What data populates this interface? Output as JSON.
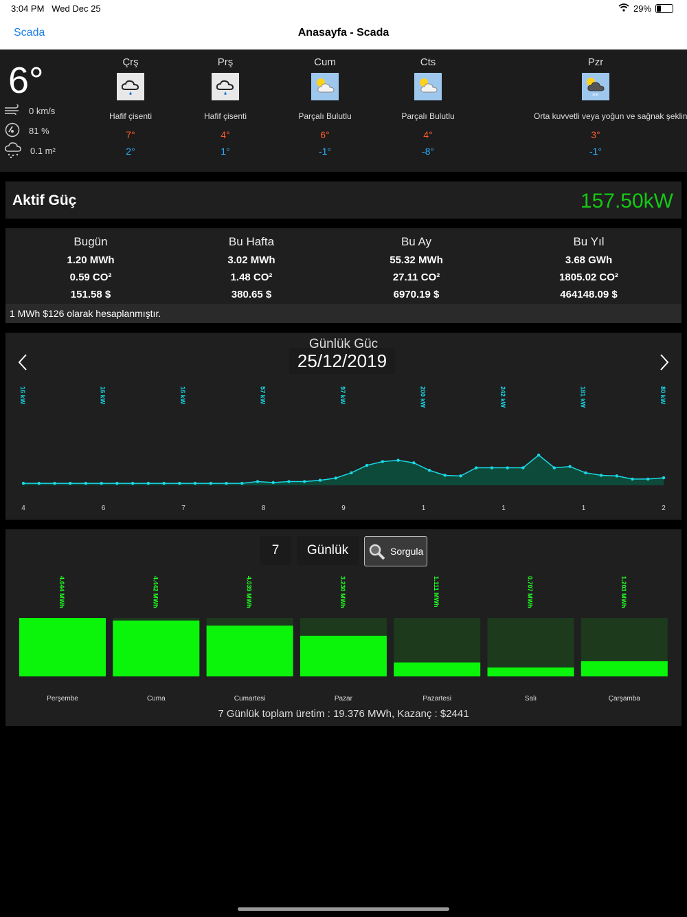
{
  "status": {
    "time": "3:04 PM",
    "date": "Wed Dec 25",
    "battery": "29%",
    "battery_level": 0.29
  },
  "nav": {
    "back": "Scada",
    "title": "Anasayfa - Scada"
  },
  "weather": {
    "current": {
      "temp": "6°",
      "wind": "0 km/s",
      "humidity": "81 %",
      "rain": "0.1 m²"
    },
    "days": [
      {
        "name": "Çrş",
        "icon": "rain-cloud-icon",
        "cond": "Hafif çisenti",
        "hi": "7°",
        "lo": "2°"
      },
      {
        "name": "Prş",
        "icon": "rain-cloud-icon",
        "cond": "Hafif çisenti",
        "hi": "4°",
        "lo": "1°"
      },
      {
        "name": "Cum",
        "icon": "partly-cloudy-icon",
        "cond": "Parçalı Bulutlu",
        "hi": "6°",
        "lo": "-1°"
      },
      {
        "name": "Cts",
        "icon": "partly-cloudy-icon",
        "cond": "Parçalı Bulutlu",
        "hi": "4°",
        "lo": "-8°"
      },
      {
        "name": "Pzr",
        "icon": "snow-cloud-icon",
        "cond": "Orta kuvvetli veya yoğun ve sağnak şeklinde kar",
        "hi": "3°",
        "lo": "-1°"
      }
    ]
  },
  "aktif": {
    "label": "Aktif Güç",
    "value": "157.50kW"
  },
  "stats": {
    "cols": [
      {
        "h": "Bugün",
        "energy": "1.20 MWh",
        "co2": "0.59 CO²",
        "money": "151.58 $"
      },
      {
        "h": "Bu Hafta",
        "energy": "3.02 MWh",
        "co2": "1.48 CO²",
        "money": "380.65 $"
      },
      {
        "h": "Bu Ay",
        "energy": "55.32 MWh",
        "co2": "27.11 CO²",
        "money": "6970.19 $"
      },
      {
        "h": "Bu Yıl",
        "energy": "3.68 GWh",
        "co2": "1805.02 CO²",
        "money": "464148.09 $"
      }
    ],
    "note": "1 MWh $126 olarak hesaplanmıştır."
  },
  "daily": {
    "title": "Günlük Güç",
    "date": "25/12/2019",
    "colors": {
      "line": "#19d9e6",
      "fill": "#0e4a3a"
    },
    "chart_data": {
      "type": "area",
      "y": [
        16,
        16,
        16,
        16,
        16,
        16,
        16,
        16,
        16,
        16,
        16,
        16,
        16,
        16,
        16,
        30,
        22,
        30,
        30,
        40,
        58,
        100,
        160,
        190,
        200,
        180,
        120,
        80,
        75,
        140,
        140,
        140,
        140,
        242,
        140,
        150,
        100,
        80,
        75,
        50,
        50,
        60
      ],
      "top_labels": [
        "16 kW",
        "16 kW",
        "16 kW",
        "57 kW",
        "97 kW",
        "200 kW",
        "242 kW",
        "181 kW",
        "80 kW"
      ],
      "x_labels": [
        "4",
        "6",
        "7",
        "8",
        "9",
        "1",
        "1",
        "1",
        "2"
      ],
      "ymax": 242
    }
  },
  "weekly": {
    "days_value": "7",
    "period": "Günlük",
    "button": "Sorgula",
    "colors": {
      "bar": "#0af50a",
      "bg": "#1d3a1d",
      "label": "#22ff22"
    },
    "chart_data": {
      "type": "bar",
      "categories": [
        "Perşembe",
        "Cuma",
        "Cumartesi",
        "Pazar",
        "Pazartesi",
        "Salı",
        "Çarşamba"
      ],
      "values": [
        4.644,
        4.442,
        4.039,
        3.23,
        1.111,
        0.707,
        1.203
      ],
      "labels": [
        "4.644 MWh",
        "4.442 MWh",
        "4.039 MWh",
        "3.230 MWh",
        "1.111 MWh",
        "0.707 MWh",
        "1.203 MWh"
      ],
      "ymax": 4.644
    },
    "summary": "7 Günlük toplam üretim : 19.376 MWh, Kazanç : $2441"
  }
}
